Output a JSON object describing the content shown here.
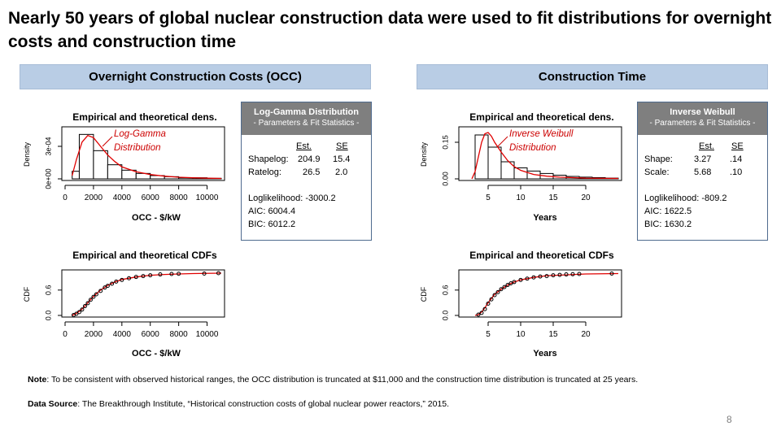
{
  "title": "Nearly 50 years of global nuclear construction data were used to fit distributions for overnight costs and construction time",
  "sections": {
    "occ": "Overnight Construction Costs (OCC)",
    "ct": "Construction Time"
  },
  "occ_stats": {
    "header1": "Log-Gamma Distribution",
    "header2": "- Parameters & Fit Statistics -",
    "col_est": "Est.",
    "col_se": "SE",
    "rows": [
      {
        "label": "Shapelog:",
        "est": "204.9",
        "se": "15.4"
      },
      {
        "label": "Ratelog:",
        "est": "26.5",
        "se": "2.0"
      }
    ],
    "loglik": "Loglikelihood:  -3000.2",
    "aic": "AIC:  6004.4",
    "bic": "BIC:  6012.2"
  },
  "ct_stats": {
    "header1": "Inverse Weibull",
    "header2": "- Parameters & Fit Statistics -",
    "col_est": "Est.",
    "col_se": "SE",
    "rows": [
      {
        "label": "Shape:",
        "est": "3.27",
        "se": ".14"
      },
      {
        "label": "Scale:",
        "est": "5.68",
        "se": ".10"
      }
    ],
    "loglik": "Loglikelihood:  -809.2",
    "aic": "AIC:  1622.5",
    "bic": "BIC:  1630.2"
  },
  "axis_titles": {
    "occ_density": "OCC - $/kW",
    "ct_density": "Years",
    "occ_cdf": "OCC - $/kW",
    "ct_cdf": "Years"
  },
  "notes": {
    "note_label": "Note",
    "note_text": ": To be consistent with observed historical ranges, the OCC distribution is truncated at $11,000 and the construction time distribution is truncated at 25 years.",
    "source_label": "Data Source",
    "source_text": ": The Breakthrough Institute, “Historical construction costs of global nuclear power reactors,” 2015."
  },
  "page_number": "8",
  "colors": {
    "fit_curve": "#e00000",
    "header_fill": "#b9cde5",
    "stats_header": "#7f7f7f",
    "annotation": "#cc0000"
  },
  "chart_data": [
    {
      "id": "occ_density",
      "type": "bar",
      "title": "Empirical and theoretical dens.",
      "ylabel": "Density",
      "annotation": [
        "Log-Gamma",
        "Distribution"
      ],
      "xlim": [
        0,
        11000
      ],
      "ylim": [
        0,
        0.00045
      ],
      "xticks": [
        "0",
        "2000",
        "4000",
        "6000",
        "8000",
        "10000"
      ],
      "xtick_values": [
        0,
        2000,
        4000,
        6000,
        8000,
        10000
      ],
      "yticks": [
        "0e+00",
        "3e-04"
      ],
      "ytick_values": [
        0,
        0.0003
      ],
      "bins": [
        [
          500,
          1000
        ],
        [
          1000,
          2000
        ],
        [
          2000,
          3000
        ],
        [
          3000,
          4000
        ],
        [
          4000,
          5000
        ],
        [
          5000,
          6000
        ],
        [
          6000,
          7000
        ],
        [
          7000,
          8000
        ],
        [
          8000,
          9000
        ],
        [
          9000,
          10000
        ],
        [
          10000,
          11000
        ]
      ],
      "values": [
        7e-05,
        0.00041,
        0.00026,
        0.00013,
        8e-05,
        5e-05,
        3e-05,
        2e-05,
        1e-05,
        1e-05,
        5e-06
      ],
      "curve": [
        [
          500,
          3e-05
        ],
        [
          800,
          0.00018
        ],
        [
          1200,
          0.00034
        ],
        [
          1600,
          0.0004
        ],
        [
          2000,
          0.00038
        ],
        [
          2500,
          0.0003
        ],
        [
          3000,
          0.00022
        ],
        [
          3500,
          0.00016
        ],
        [
          4000,
          0.00011
        ],
        [
          5000,
          6.5e-05
        ],
        [
          6000,
          4e-05
        ],
        [
          7000,
          2.5e-05
        ],
        [
          8000,
          1.5e-05
        ],
        [
          9000,
          1e-05
        ],
        [
          10000,
          6e-06
        ],
        [
          11000,
          4e-06
        ]
      ]
    },
    {
      "id": "ct_density",
      "type": "bar",
      "title": "Empirical and theoretical dens.",
      "ylabel": "Density",
      "annotation": [
        "Inverse Weibull",
        "Distribution"
      ],
      "xlim": [
        1,
        25
      ],
      "ylim": [
        0,
        0.2
      ],
      "xticks": [
        "5",
        "10",
        "15",
        "20"
      ],
      "xtick_values": [
        5,
        10,
        15,
        20
      ],
      "yticks": [
        "0.00",
        "0.15"
      ],
      "ytick_values": [
        0,
        0.15
      ],
      "bins": [
        [
          3,
          5
        ],
        [
          5,
          7
        ],
        [
          7,
          9
        ],
        [
          9,
          11
        ],
        [
          11,
          13
        ],
        [
          13,
          15
        ],
        [
          15,
          17
        ],
        [
          17,
          19
        ],
        [
          19,
          21
        ],
        [
          21,
          23
        ],
        [
          23,
          25
        ]
      ],
      "values": [
        0.18,
        0.13,
        0.07,
        0.045,
        0.032,
        0.022,
        0.015,
        0.01,
        0.007,
        0.005,
        0.003
      ],
      "curve": [
        [
          2.5,
          0.0
        ],
        [
          3,
          0.03
        ],
        [
          3.5,
          0.09
        ],
        [
          4,
          0.15
        ],
        [
          4.5,
          0.185
        ],
        [
          5,
          0.19
        ],
        [
          5.5,
          0.175
        ],
        [
          6,
          0.15
        ],
        [
          7,
          0.11
        ],
        [
          8,
          0.075
        ],
        [
          9,
          0.05
        ],
        [
          10,
          0.035
        ],
        [
          12,
          0.018
        ],
        [
          14,
          0.011
        ],
        [
          16,
          0.007
        ],
        [
          18,
          0.005
        ],
        [
          20,
          0.003
        ],
        [
          23,
          0.002
        ],
        [
          25,
          0.0015
        ]
      ]
    },
    {
      "id": "occ_cdf",
      "type": "line",
      "title": "Empirical and theoretical CDFs",
      "ylabel": "CDF",
      "xlim": [
        0,
        11000
      ],
      "ylim": [
        0,
        1
      ],
      "xticks": [
        "0",
        "2000",
        "4000",
        "6000",
        "8000",
        "10000"
      ],
      "xtick_values": [
        0,
        2000,
        4000,
        6000,
        8000,
        10000
      ],
      "yticks": [
        "0.0",
        "0.6"
      ],
      "ytick_values": [
        0,
        0.6
      ],
      "curve": [
        [
          500,
          0.0
        ],
        [
          800,
          0.05
        ],
        [
          1200,
          0.15
        ],
        [
          1600,
          0.3
        ],
        [
          2000,
          0.45
        ],
        [
          2500,
          0.6
        ],
        [
          3000,
          0.71
        ],
        [
          3500,
          0.79
        ],
        [
          4000,
          0.85
        ],
        [
          5000,
          0.91
        ],
        [
          6000,
          0.95
        ],
        [
          7000,
          0.97
        ],
        [
          8000,
          0.98
        ],
        [
          9000,
          0.99
        ],
        [
          11000,
          1.0
        ]
      ],
      "points": [
        [
          600,
          0.01
        ],
        [
          800,
          0.04
        ],
        [
          1000,
          0.08
        ],
        [
          1200,
          0.14
        ],
        [
          1400,
          0.22
        ],
        [
          1600,
          0.29
        ],
        [
          1800,
          0.37
        ],
        [
          2000,
          0.44
        ],
        [
          2200,
          0.5
        ],
        [
          2500,
          0.58
        ],
        [
          2800,
          0.66
        ],
        [
          3000,
          0.7
        ],
        [
          3300,
          0.75
        ],
        [
          3600,
          0.8
        ],
        [
          4000,
          0.84
        ],
        [
          4500,
          0.88
        ],
        [
          5000,
          0.91
        ],
        [
          5500,
          0.93
        ],
        [
          6000,
          0.95
        ],
        [
          6700,
          0.97
        ],
        [
          7500,
          0.98
        ],
        [
          8000,
          0.985
        ],
        [
          9800,
          0.99
        ],
        [
          10800,
          1.0
        ]
      ]
    },
    {
      "id": "ct_cdf",
      "type": "line",
      "title": "Empirical and theoretical CDFs",
      "ylabel": "CDF",
      "xlim": [
        1,
        25
      ],
      "ylim": [
        0,
        1
      ],
      "xticks": [
        "5",
        "10",
        "15",
        "20"
      ],
      "xtick_values": [
        5,
        10,
        15,
        20
      ],
      "yticks": [
        "0.0",
        "0.6"
      ],
      "ytick_values": [
        0,
        0.6
      ],
      "curve": [
        [
          3,
          0.0
        ],
        [
          3.5,
          0.02
        ],
        [
          4,
          0.08
        ],
        [
          4.5,
          0.18
        ],
        [
          5,
          0.3
        ],
        [
          5.5,
          0.4
        ],
        [
          6,
          0.5
        ],
        [
          7,
          0.62
        ],
        [
          8,
          0.72
        ],
        [
          9,
          0.79
        ],
        [
          10,
          0.84
        ],
        [
          12,
          0.9
        ],
        [
          14,
          0.94
        ],
        [
          17,
          0.96
        ],
        [
          20,
          0.98
        ],
        [
          25,
          0.99
        ]
      ],
      "points": [
        [
          3.5,
          0.02
        ],
        [
          4,
          0.06
        ],
        [
          4.5,
          0.15
        ],
        [
          5,
          0.28
        ],
        [
          5.5,
          0.38
        ],
        [
          6,
          0.48
        ],
        [
          6.5,
          0.55
        ],
        [
          7,
          0.62
        ],
        [
          7.5,
          0.67
        ],
        [
          8,
          0.72
        ],
        [
          8.5,
          0.76
        ],
        [
          9,
          0.79
        ],
        [
          10,
          0.84
        ],
        [
          11,
          0.87
        ],
        [
          12,
          0.9
        ],
        [
          13,
          0.92
        ],
        [
          14,
          0.93
        ],
        [
          15,
          0.95
        ],
        [
          16,
          0.96
        ],
        [
          17,
          0.97
        ],
        [
          18,
          0.975
        ],
        [
          19,
          0.98
        ],
        [
          24,
          0.99
        ]
      ]
    }
  ]
}
